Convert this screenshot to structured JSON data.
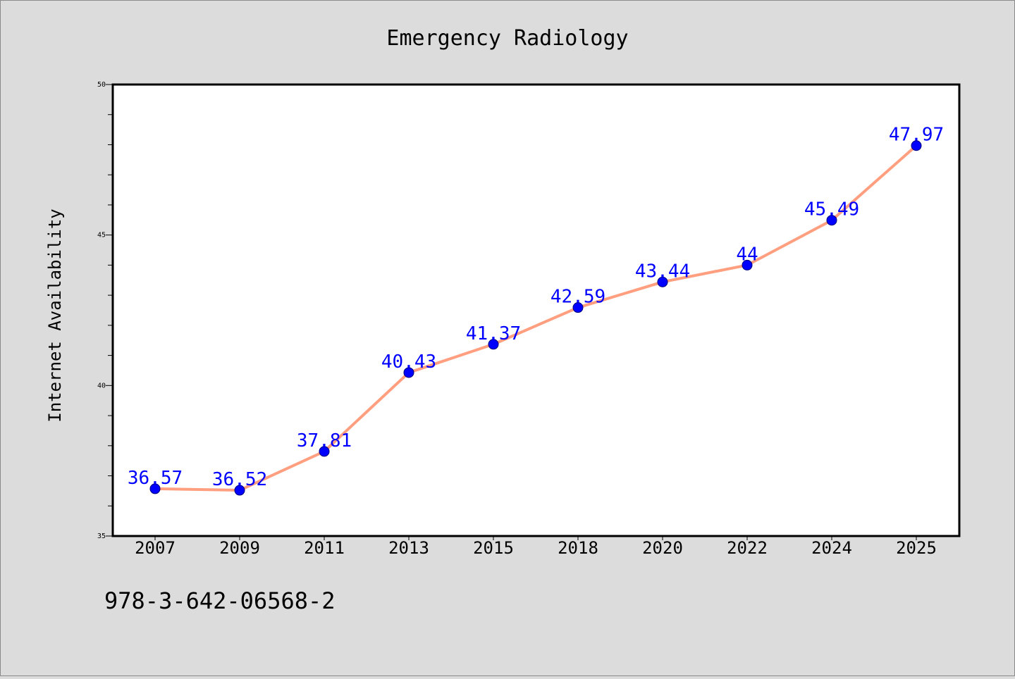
{
  "chart_data": {
    "type": "line",
    "title": "Emergency Radiology",
    "xlabel": "",
    "ylabel": "Internet Availability",
    "categories": [
      "2007",
      "2009",
      "2011",
      "2013",
      "2015",
      "2018",
      "2020",
      "2022",
      "2024",
      "2025"
    ],
    "series": [
      {
        "values": [
          36.57,
          36.52,
          37.81,
          40.43,
          41.37,
          42.59,
          43.44,
          44,
          45.49,
          47.97
        ],
        "data_labels": [
          "36.57",
          "36.52",
          "37.81",
          "40.43",
          "41.37",
          "42.59",
          "43.44",
          "44",
          "45.49",
          "47.97"
        ],
        "line_color": "#ff9f7f",
        "marker_color": "#0000ff"
      }
    ],
    "ylim": [
      35,
      50
    ],
    "y_ticks": [
      "35",
      "40",
      "45",
      "50"
    ],
    "grid": false,
    "label_color": "#0000ff"
  },
  "footer_code": "978-3-642-06568-2",
  "colors": {
    "background": "#dcdcdc",
    "plot_background": "#ffffff",
    "axis": "#000000"
  }
}
